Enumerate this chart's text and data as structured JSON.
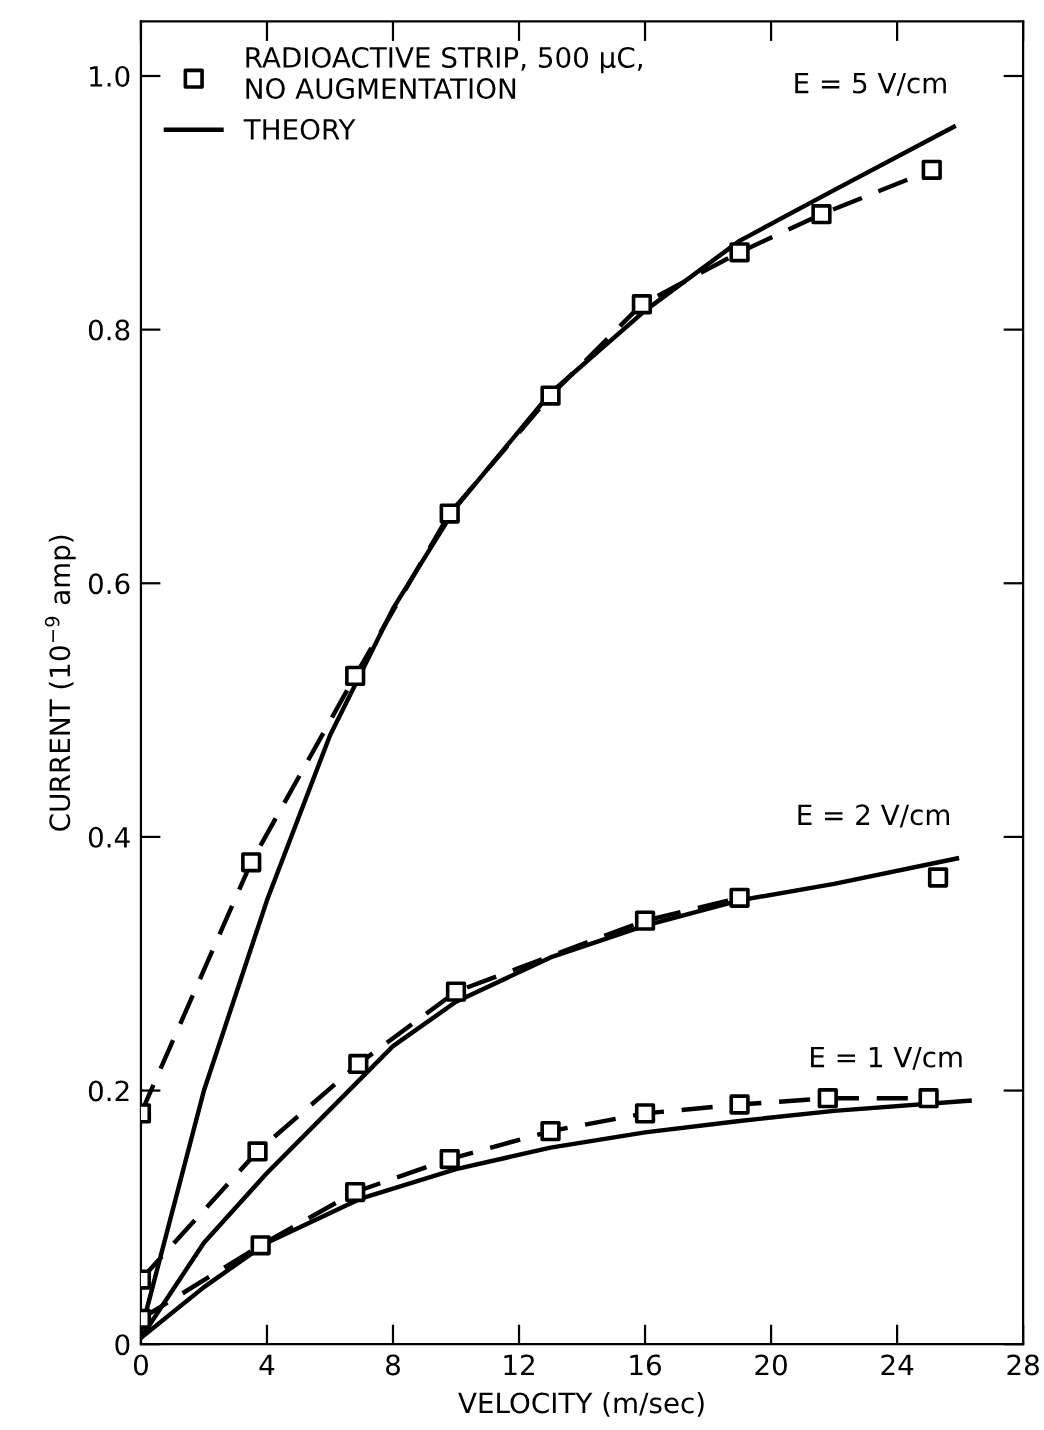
{
  "chart_data": {
    "type": "line",
    "xlabel": "VELOCITY (m/sec)",
    "ylabel": "CURRENT (10$^{−9}$ amp)",
    "xlim": [
      0,
      28
    ],
    "xticks": [
      0,
      4,
      8,
      12,
      16,
      20,
      24,
      28
    ],
    "ylim": [
      0,
      1.043
    ],
    "yticks": [
      0,
      0.2,
      0.4,
      0.6,
      0.8,
      {
        "value": 1.0,
        "label": "1.0"
      }
    ],
    "grid": false,
    "legend": "top left",
    "series": [
      {
        "type": "scatter",
        "name": "RADIOACTIVE STRIP, 500 μC,\nNO AUGMENTATION",
        "color": "#000000",
        "marker": "square",
        "x": [
          0,
          3.5,
          6.8,
          9.8,
          13,
          15.9,
          19,
          21.6,
          25.1
        ],
        "values": [
          0.182,
          0.38,
          0.527,
          0.655,
          0.748,
          0.82,
          0.861,
          0.891,
          0.926
        ]
      },
      {
        "type": "scatter",
        "color": "#000000",
        "marker": "square",
        "x": [
          0,
          3.7,
          6.9,
          10,
          16,
          19,
          25.3
        ],
        "values": [
          0.051,
          0.152,
          0.221,
          0.278,
          0.334,
          0.352,
          0.368
        ]
      },
      {
        "type": "scatter",
        "color": "#000000",
        "marker": "square",
        "x": [
          0,
          3.8,
          6.8,
          9.8,
          13,
          16,
          19,
          21.8,
          25
        ],
        "values": [
          0.02,
          0.078,
          0.12,
          0.146,
          0.168,
          0.182,
          0.189,
          0.194,
          0.194
        ]
      },
      {
        "type": "line",
        "color": "#000000",
        "line_style": "dashed",
        "x": [
          0,
          3.5,
          6.8,
          9.8,
          13,
          15.9,
          19,
          21.6,
          25.1
        ],
        "values": [
          0.182,
          0.38,
          0.527,
          0.655,
          0.748,
          0.82,
          0.861,
          0.891,
          0.926
        ]
      },
      {
        "type": "line",
        "color": "#000000",
        "line_style": "dashed",
        "x": [
          0,
          3.7,
          6.9,
          10,
          16,
          19
        ],
        "values": [
          0.051,
          0.152,
          0.221,
          0.278,
          0.334,
          0.352
        ]
      },
      {
        "type": "line",
        "color": "#000000",
        "line_style": "dashed",
        "x": [
          0,
          3.8,
          6.8,
          9.8,
          13,
          16,
          19,
          21.8,
          25
        ],
        "values": [
          0.02,
          0.078,
          0.12,
          0.146,
          0.168,
          0.182,
          0.189,
          0.194,
          0.194
        ]
      },
      {
        "name": "THEORY",
        "color": "#000000",
        "line_style": "solid",
        "x": [
          0,
          2,
          4,
          6,
          8,
          10,
          13,
          16,
          19,
          22,
          25.8
        ],
        "values": [
          0.01,
          0.2,
          0.35,
          0.48,
          0.58,
          0.66,
          0.75,
          0.815,
          0.87,
          0.91,
          0.96
        ]
      },
      {
        "color": "#000000",
        "line_style": "solid",
        "x": [
          0,
          2,
          4,
          6,
          8,
          10,
          13,
          16,
          19,
          22,
          25.9
        ],
        "values": [
          0.005,
          0.08,
          0.135,
          0.185,
          0.235,
          0.27,
          0.305,
          0.33,
          0.35,
          0.363,
          0.383
        ]
      },
      {
        "color": "#000000",
        "line_style": "solid",
        "x": [
          0,
          2,
          4,
          7,
          10,
          13,
          16,
          19,
          22,
          26.3
        ],
        "values": [
          0.005,
          0.045,
          0.08,
          0.115,
          0.138,
          0.155,
          0.167,
          0.176,
          0.184,
          0.192
        ]
      }
    ],
    "annotations": [
      "E = 5 V/cm",
      "E = 2 V/cm",
      "E = 1 V/cm"
    ]
  }
}
